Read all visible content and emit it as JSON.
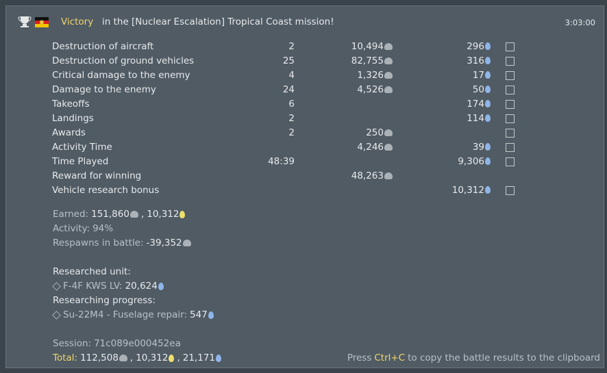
{
  "header": {
    "result": "Victory",
    "message": "in the [Nuclear Escalation] Tropical Coast mission!",
    "time": "3:03:00"
  },
  "table": {
    "rows": [
      {
        "name": "Destruction of aircraft",
        "count": "2",
        "sl": "10,494",
        "rp": "296",
        "help": true
      },
      {
        "name": "Destruction of ground vehicles",
        "count": "25",
        "sl": "82,755",
        "rp": "316",
        "help": true
      },
      {
        "name": "Critical damage to the enemy",
        "count": "4",
        "sl": "1,326",
        "rp": "17",
        "help": true
      },
      {
        "name": "Damage to the enemy",
        "count": "24",
        "sl": "4,526",
        "rp": "50",
        "help": true
      },
      {
        "name": "Takeoffs",
        "count": "6",
        "sl": null,
        "rp": "174",
        "help": true
      },
      {
        "name": "Landings",
        "count": "2",
        "sl": null,
        "rp": "114",
        "help": true
      },
      {
        "name": "Awards",
        "count": "2",
        "sl": "250",
        "rp": null,
        "help": true
      },
      {
        "name": "Activity Time",
        "count": null,
        "sl": "4,246",
        "rp": "39",
        "help": true
      },
      {
        "name": "Time Played",
        "count": "48:39",
        "sl": null,
        "rp": "9,306",
        "help": true
      },
      {
        "name": "Reward for winning",
        "count": null,
        "sl": "48,263",
        "rp": null,
        "help": false
      },
      {
        "name": "Vehicle research bonus",
        "count": null,
        "sl": null,
        "rp": "10,312",
        "help": true
      }
    ]
  },
  "summary": {
    "earned": {
      "label": "Earned:",
      "sl": "151,860",
      "separator": ",",
      "rp_gold": "10,312"
    },
    "activity": {
      "label": "Activity:",
      "value": "94%"
    },
    "respawns": {
      "label": "Respawns in battle:",
      "sl": "-39,352"
    },
    "researched_unit": {
      "heading": "Researched unit:",
      "unit": "F-4F KWS LV:",
      "rp": "20,624"
    },
    "researching_progress": {
      "heading": "Researching progress:",
      "item": "Su-22M4 - Fuselage repair:",
      "rp": "547"
    },
    "session": {
      "label": "Session:",
      "value": "71c089e000452ea"
    },
    "total": {
      "label": "Total:",
      "sl": "112,508",
      "separator": ",",
      "rp_gold": "10,312",
      "rp": "21,171"
    }
  },
  "hint": {
    "before": "Press",
    "keys": "Ctrl+C",
    "after": "to copy the battle results to the clipboard"
  }
}
